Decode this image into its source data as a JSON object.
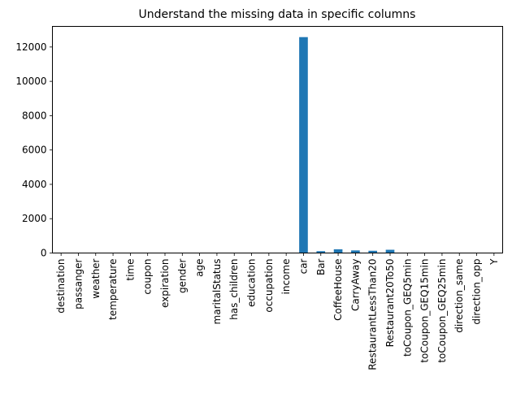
{
  "chart_data": {
    "type": "bar",
    "title": "Understand the missing data in specific columns",
    "xlabel": "",
    "ylabel": "",
    "ylim": [
      0,
      13200
    ],
    "yticks": [
      0,
      2000,
      4000,
      6000,
      8000,
      10000,
      12000
    ],
    "bar_color": "#1f77b4",
    "grid": false,
    "categories": [
      "destination",
      "passanger",
      "weather",
      "temperature",
      "time",
      "coupon",
      "expiration",
      "gender",
      "age",
      "maritalStatus",
      "has_children",
      "education",
      "occupation",
      "income",
      "car",
      "Bar",
      "CoffeeHouse",
      "CarryAway",
      "RestaurantLessThan20",
      "Restaurant20To50",
      "toCoupon_GEQ5min",
      "toCoupon_GEQ15min",
      "toCoupon_GEQ25min",
      "direction_same",
      "direction_opp",
      "Y"
    ],
    "values": [
      0,
      0,
      0,
      0,
      0,
      0,
      0,
      0,
      0,
      0,
      0,
      0,
      0,
      0,
      12576,
      107,
      217,
      151,
      130,
      189,
      0,
      0,
      0,
      0,
      0,
      0
    ]
  }
}
